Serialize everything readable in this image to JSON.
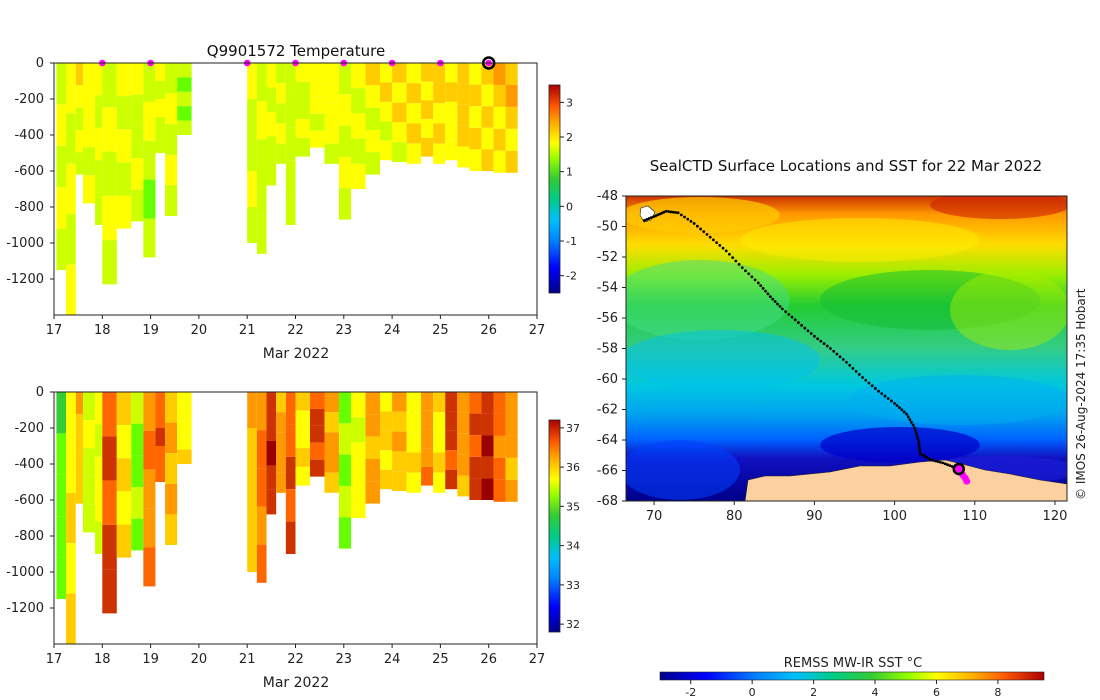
{
  "colors": {
    "temp_ramp": [
      "#00008b",
      "#0000ff",
      "#0080ff",
      "#00bfff",
      "#00ffcc",
      "#33cc33",
      "#66ff00",
      "#ccff00",
      "#ffff00",
      "#ffcc00",
      "#ff9900",
      "#ff6600",
      "#cc3300",
      "#990000"
    ],
    "marker": "#ff00ff",
    "land": "#fdd0a0"
  },
  "chart_data": [
    {
      "type": "heatmap",
      "id": "temperature",
      "title": "Q9901572  Temperature",
      "xlabel": "Mar 2022",
      "ylabel": "",
      "x_ticks": [
        "17",
        "18",
        "19",
        "20",
        "21",
        "22",
        "23",
        "24",
        "25",
        "26",
        "27"
      ],
      "xlim": [
        17,
        27
      ],
      "y_ticks": [
        "0",
        "-200",
        "-400",
        "-600",
        "-800",
        "-1000",
        "-1200"
      ],
      "ylim": [
        -1400,
        0
      ],
      "colorbar_ticks": [
        "3",
        "2",
        "1",
        "0",
        "-1",
        "-2"
      ],
      "colorbar_range": [
        -2.5,
        3.5
      ],
      "marker_days": [
        18,
        19,
        21,
        22,
        23,
        24,
        25,
        26
      ],
      "current_day": 26,
      "profiles": [
        {
          "t": 17.05,
          "d": 1150,
          "v": 1.1
        },
        {
          "t": 17.25,
          "d": 1400,
          "v": 1.0
        },
        {
          "t": 17.45,
          "d": 620,
          "v": 1.2
        },
        {
          "t": 17.6,
          "d": 780,
          "v": 1.1
        },
        {
          "t": 17.85,
          "d": 900,
          "v": 1.0
        },
        {
          "t": 18.0,
          "d": 1230,
          "v": 0.9
        },
        {
          "t": 18.3,
          "d": 920,
          "v": 1.1
        },
        {
          "t": 18.6,
          "d": 880,
          "v": 1.0
        },
        {
          "t": 18.85,
          "d": 1080,
          "v": 0.8
        },
        {
          "t": 19.1,
          "d": 500,
          "v": 1.0
        },
        {
          "t": 19.3,
          "d": 850,
          "v": 1.0
        },
        {
          "t": 19.55,
          "d": 400,
          "v": 0.7
        },
        {
          "t": 21.0,
          "d": 1000,
          "v": 1.0
        },
        {
          "t": 21.2,
          "d": 1060,
          "v": 0.9
        },
        {
          "t": 21.4,
          "d": 680,
          "v": 1.1
        },
        {
          "t": 21.6,
          "d": 560,
          "v": 1.0
        },
        {
          "t": 21.8,
          "d": 900,
          "v": 0.9
        },
        {
          "t": 22.0,
          "d": 520,
          "v": 1.0
        },
        {
          "t": 22.3,
          "d": 470,
          "v": 1.1
        },
        {
          "t": 22.6,
          "d": 560,
          "v": 1.2
        },
        {
          "t": 22.9,
          "d": 870,
          "v": 1.0
        },
        {
          "t": 23.15,
          "d": 700,
          "v": 1.1
        },
        {
          "t": 23.45,
          "d": 620,
          "v": 1.2
        },
        {
          "t": 23.75,
          "d": 540,
          "v": 1.3
        },
        {
          "t": 24.0,
          "d": 550,
          "v": 1.4
        },
        {
          "t": 24.3,
          "d": 560,
          "v": 1.4
        },
        {
          "t": 24.6,
          "d": 520,
          "v": 1.5
        },
        {
          "t": 24.85,
          "d": 560,
          "v": 1.5
        },
        {
          "t": 25.1,
          "d": 540,
          "v": 1.5
        },
        {
          "t": 25.35,
          "d": 580,
          "v": 1.6
        },
        {
          "t": 25.6,
          "d": 600,
          "v": 1.6
        },
        {
          "t": 25.85,
          "d": 600,
          "v": 1.6
        },
        {
          "t": 26.1,
          "d": 610,
          "v": 1.7
        },
        {
          "t": 26.35,
          "d": 610,
          "v": 1.7
        }
      ]
    },
    {
      "type": "heatmap",
      "id": "salinity",
      "title": "",
      "xlabel": "Mar 2022",
      "ylabel": "",
      "x_ticks": [
        "17",
        "18",
        "19",
        "20",
        "21",
        "22",
        "23",
        "24",
        "25",
        "26",
        "27"
      ],
      "xlim": [
        17,
        27
      ],
      "y_ticks": [
        "0",
        "-200",
        "-400",
        "-600",
        "-800",
        "-1000",
        "-1200"
      ],
      "ylim": [
        -1400,
        0
      ],
      "colorbar_ticks": [
        "37",
        "36",
        "35",
        "34",
        "33",
        "32"
      ],
      "colorbar_range": [
        31.8,
        37.2
      ],
      "profiles": [
        {
          "t": 17.05,
          "d": 1150,
          "v": 34.2
        },
        {
          "t": 17.25,
          "d": 1400,
          "v": 35.3
        },
        {
          "t": 17.45,
          "d": 620,
          "v": 35.6
        },
        {
          "t": 17.6,
          "d": 780,
          "v": 34.8
        },
        {
          "t": 17.85,
          "d": 900,
          "v": 35.0
        },
        {
          "t": 18.0,
          "d": 1230,
          "v": 36.6
        },
        {
          "t": 18.3,
          "d": 920,
          "v": 35.4
        },
        {
          "t": 18.6,
          "d": 880,
          "v": 34.4
        },
        {
          "t": 18.85,
          "d": 1080,
          "v": 36.1
        },
        {
          "t": 19.1,
          "d": 500,
          "v": 36.4
        },
        {
          "t": 19.3,
          "d": 850,
          "v": 35.7
        },
        {
          "t": 19.55,
          "d": 400,
          "v": 35.2
        },
        {
          "t": 21.0,
          "d": 1000,
          "v": 35.6
        },
        {
          "t": 21.2,
          "d": 1060,
          "v": 36.2
        },
        {
          "t": 21.4,
          "d": 680,
          "v": 36.8
        },
        {
          "t": 21.6,
          "d": 560,
          "v": 35.9
        },
        {
          "t": 21.8,
          "d": 900,
          "v": 36.5
        },
        {
          "t": 22.0,
          "d": 520,
          "v": 35.3
        },
        {
          "t": 22.3,
          "d": 470,
          "v": 36.6
        },
        {
          "t": 22.6,
          "d": 560,
          "v": 35.8
        },
        {
          "t": 22.9,
          "d": 870,
          "v": 34.5
        },
        {
          "t": 23.15,
          "d": 700,
          "v": 35.1
        },
        {
          "t": 23.45,
          "d": 620,
          "v": 35.9
        },
        {
          "t": 23.75,
          "d": 540,
          "v": 35.4
        },
        {
          "t": 24.0,
          "d": 550,
          "v": 35.7
        },
        {
          "t": 24.3,
          "d": 560,
          "v": 35.2
        },
        {
          "t": 24.6,
          "d": 520,
          "v": 36.0
        },
        {
          "t": 24.85,
          "d": 560,
          "v": 35.3
        },
        {
          "t": 25.1,
          "d": 540,
          "v": 36.7
        },
        {
          "t": 25.35,
          "d": 580,
          "v": 35.9
        },
        {
          "t": 25.6,
          "d": 600,
          "v": 36.6
        },
        {
          "t": 25.85,
          "d": 600,
          "v": 36.9
        },
        {
          "t": 26.1,
          "d": 610,
          "v": 36.3
        },
        {
          "t": 26.35,
          "d": 610,
          "v": 35.9
        }
      ]
    },
    {
      "type": "heatmap",
      "id": "sst-map",
      "title": "SealCTD Surface Locations and SST for 22 Mar 2022",
      "xlabel": "",
      "ylabel": "",
      "x_ticks": [
        "70",
        "80",
        "90",
        "100",
        "110",
        "120"
      ],
      "xlim": [
        66.5,
        121.5
      ],
      "y_ticks": [
        "-48",
        "-50",
        "-52",
        "-54",
        "-56",
        "-58",
        "-60",
        "-62",
        "-64",
        "-66",
        "-68"
      ],
      "ylim": [
        -68,
        -48
      ],
      "credit": "© IMOS 26-Aug-2024 17:35 Hobart",
      "colorbar_label": "REMSS MW-IR SST °C",
      "colorbar_ticks": [
        "-2",
        "0",
        "2",
        "4",
        "6",
        "8"
      ],
      "colorbar_range": [
        -3,
        9.5
      ],
      "track": [
        [
          68.8,
          -49.6
        ],
        [
          70.2,
          -49.3
        ],
        [
          71.5,
          -49.0
        ],
        [
          73.0,
          -49.1
        ],
        [
          75.0,
          -49.8
        ],
        [
          77.0,
          -50.7
        ],
        [
          79.0,
          -51.6
        ],
        [
          81.0,
          -52.7
        ],
        [
          83.0,
          -53.7
        ],
        [
          84.5,
          -54.6
        ],
        [
          86.0,
          -55.4
        ],
        [
          88.0,
          -56.3
        ],
        [
          90.0,
          -57.2
        ],
        [
          92.0,
          -58.0
        ],
        [
          94.0,
          -58.9
        ],
        [
          96.0,
          -59.9
        ],
        [
          98.0,
          -60.8
        ],
        [
          100.0,
          -61.6
        ],
        [
          101.5,
          -62.3
        ],
        [
          102.5,
          -63.2
        ],
        [
          103.0,
          -64.1
        ],
        [
          103.2,
          -64.9
        ],
        [
          104.5,
          -65.3
        ],
        [
          106.0,
          -65.5
        ],
        [
          107.5,
          -65.8
        ],
        [
          108.3,
          -66.2
        ]
      ],
      "current_location": [
        108.0,
        -65.9
      ],
      "recent_locations": [
        [
          108.5,
          -66.3
        ],
        [
          108.8,
          -66.5
        ],
        [
          109.0,
          -66.7
        ]
      ]
    }
  ]
}
